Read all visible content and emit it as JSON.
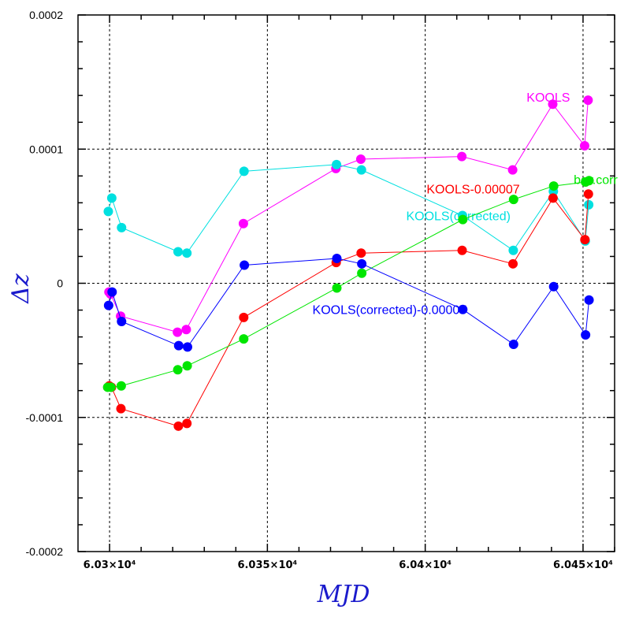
{
  "chart_data": {
    "type": "line",
    "title": "",
    "xlabel": "MJD",
    "ylabel": "Δz",
    "xlim": [
      60290,
      60460
    ],
    "ylim": [
      -0.0002,
      0.0002
    ],
    "x_ticks": [
      {
        "value": 60300,
        "label": "6.03×10⁴"
      },
      {
        "value": 60350,
        "label": "6.035×10⁴"
      },
      {
        "value": 60400,
        "label": "6.04×10⁴"
      },
      {
        "value": 60450,
        "label": "6.045×10⁴"
      }
    ],
    "y_ticks": [
      {
        "value": 0.0002,
        "label": "0.0002"
      },
      {
        "value": 0.0001,
        "label": "0.0001"
      },
      {
        "value": 0,
        "label": "0"
      },
      {
        "value": -0.0001,
        "label": "-0.0001"
      },
      {
        "value": -0.0002,
        "label": "-0.0002"
      }
    ],
    "grid": true,
    "series": [
      {
        "name": "KOOLS",
        "color": "#ff00ff",
        "label_pos": [
          60439,
          0.000139
        ],
        "x": [
          60299.8,
          60300.3,
          60303.5,
          60321.5,
          60324.3,
          60342.4,
          60371.7,
          60379.6,
          60411.6,
          60427.7,
          60440.4,
          60450.5,
          60451.6
        ],
        "y": [
          -6.5e-06,
          -8e-06,
          -2.45e-05,
          -3.65e-05,
          -3.45e-05,
          4.45e-05,
          8.55e-05,
          9.25e-05,
          9.45e-05,
          8.45e-05,
          0.0001335,
          0.0001025,
          0.0001365
        ]
      },
      {
        "name": "KOOLS(corrected)",
        "color": "#00e0e0",
        "label_pos": [
          60410.5,
          5.05e-05
        ],
        "x": [
          60299.6,
          60300.7,
          60303.8,
          60321.7,
          60324.5,
          60342.6,
          60371.9,
          60379.8,
          60411.8,
          60427.9,
          60440.6,
          60450.7,
          60451.8
        ],
        "y": [
          5.35e-05,
          6.35e-05,
          4.15e-05,
          2.35e-05,
          2.25e-05,
          8.35e-05,
          8.85e-05,
          8.45e-05,
          5.05e-05,
          2.45e-05,
          6.85e-05,
          3.15e-05,
          5.85e-05
        ]
      },
      {
        "name": "KOOLS-0.00007",
        "color": "#ff0000",
        "label_pos": [
          60415.2,
          7.05e-05
        ],
        "x": [
          60299.9,
          60300.6,
          60303.6,
          60321.8,
          60324.5,
          60342.5,
          60371.8,
          60379.7,
          60411.7,
          60427.8,
          60440.5,
          60450.6,
          60451.7
        ],
        "y": [
          -7.65e-05,
          -7.75e-05,
          -9.35e-05,
          -0.0001065,
          -0.0001045,
          -2.55e-05,
          1.55e-05,
          2.25e-05,
          2.45e-05,
          1.45e-05,
          6.35e-05,
          3.25e-05,
          6.65e-05
        ]
      },
      {
        "name": "bcv.corr",
        "color": "#00e600",
        "label_pos": [
          60454.0,
          7.75e-05
        ],
        "x": [
          60299.4,
          60300.4,
          60303.7,
          60321.6,
          60324.6,
          60342.5,
          60372.0,
          60379.9,
          60411.9,
          60428.0,
          60440.7,
          60450.8,
          60451.9
        ],
        "y": [
          -7.75e-05,
          -7.75e-05,
          -7.65e-05,
          -6.45e-05,
          -6.15e-05,
          -4.15e-05,
          -3.5e-06,
          7.5e-06,
          4.75e-05,
          6.25e-05,
          7.25e-05,
          7.55e-05,
          7.65e-05
        ]
      },
      {
        "name": "KOOLS(corrected)-0.00007",
        "color": "#0000ff",
        "label_pos": [
          60388.7,
          -1.95e-05
        ],
        "x": [
          60299.7,
          60300.8,
          60303.8,
          60321.9,
          60324.7,
          60342.7,
          60372.0,
          60379.9,
          60411.9,
          60428.0,
          60440.7,
          60450.8,
          60451.9
        ],
        "y": [
          -1.65e-05,
          -6.5e-06,
          -2.85e-05,
          -4.65e-05,
          -4.75e-05,
          1.35e-05,
          1.85e-05,
          1.45e-05,
          -1.95e-05,
          -4.55e-05,
          -2.5e-06,
          -3.85e-05,
          -1.25e-05
        ]
      }
    ]
  }
}
